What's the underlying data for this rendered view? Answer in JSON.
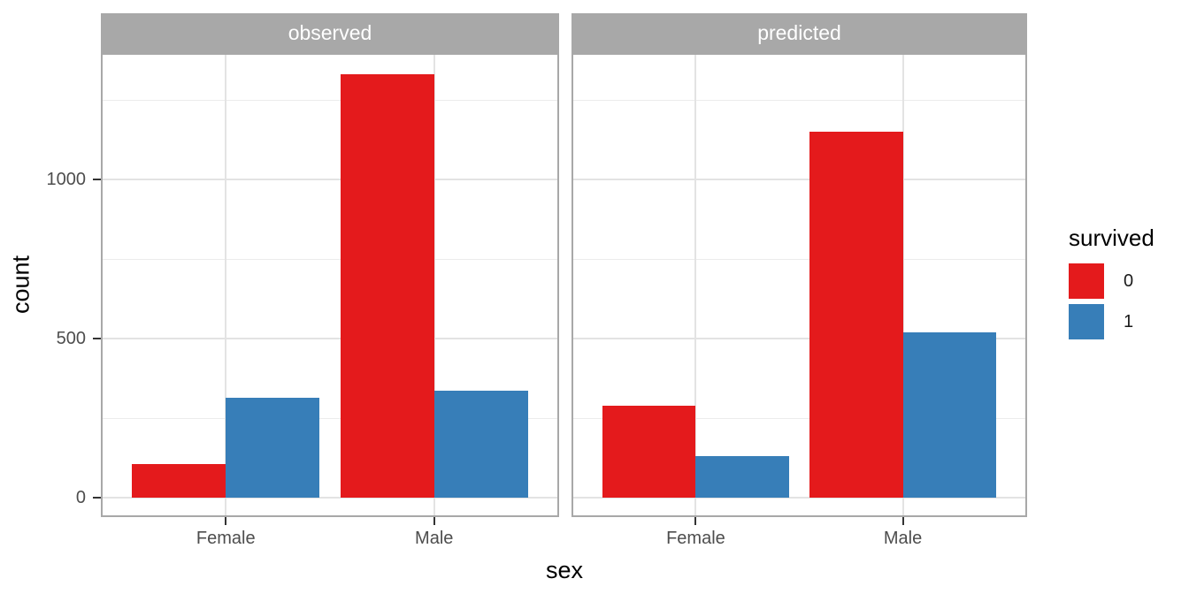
{
  "figure": {
    "y_axis": {
      "title": "count",
      "tick_labels": [
        "0",
        "500",
        "1000"
      ]
    },
    "x_axis": {
      "title": "sex",
      "tick_labels": [
        "Female",
        "Male"
      ]
    },
    "legend": {
      "title": "survived",
      "items": [
        {
          "label": "0",
          "color": "#E41A1C"
        },
        {
          "label": "1",
          "color": "#377EB8"
        }
      ]
    },
    "colors": {
      "strip_background": "#A8A8A8",
      "strip_text": "#FFFFFF",
      "panel_border": "#A8A8A8",
      "grid_major": "#E3E3E3",
      "grid_minor": "#ECECEC",
      "axis_tick": "#333333",
      "axis_text": "#4D4D4D",
      "survived_0": "#E41A1C",
      "survived_1": "#377EB8"
    }
  },
  "chart_data": {
    "type": "bar",
    "title": "",
    "xlabel": "sex",
    "ylabel": "count",
    "categories": [
      "Female",
      "Male"
    ],
    "facets": [
      {
        "label": "observed",
        "series": [
          {
            "name": "0",
            "values": [
              105,
              1330
            ]
          },
          {
            "name": "1",
            "values": [
              315,
              335
            ]
          }
        ]
      },
      {
        "label": "predicted",
        "series": [
          {
            "name": "0",
            "values": [
              290,
              1150
            ]
          },
          {
            "name": "1",
            "values": [
              130,
              520
            ]
          }
        ]
      }
    ],
    "series_colors": {
      "0": "#E41A1C",
      "1": "#377EB8"
    },
    "legend_title": "survived",
    "yticks": [
      0,
      500,
      1000
    ],
    "ytick_labels": [
      "0",
      "500",
      "1000"
    ],
    "yminor": [
      250,
      750,
      1250
    ],
    "ylim": [
      0,
      1400
    ],
    "grid": true,
    "legend_position": "right",
    "bar_layout": "dodge"
  }
}
